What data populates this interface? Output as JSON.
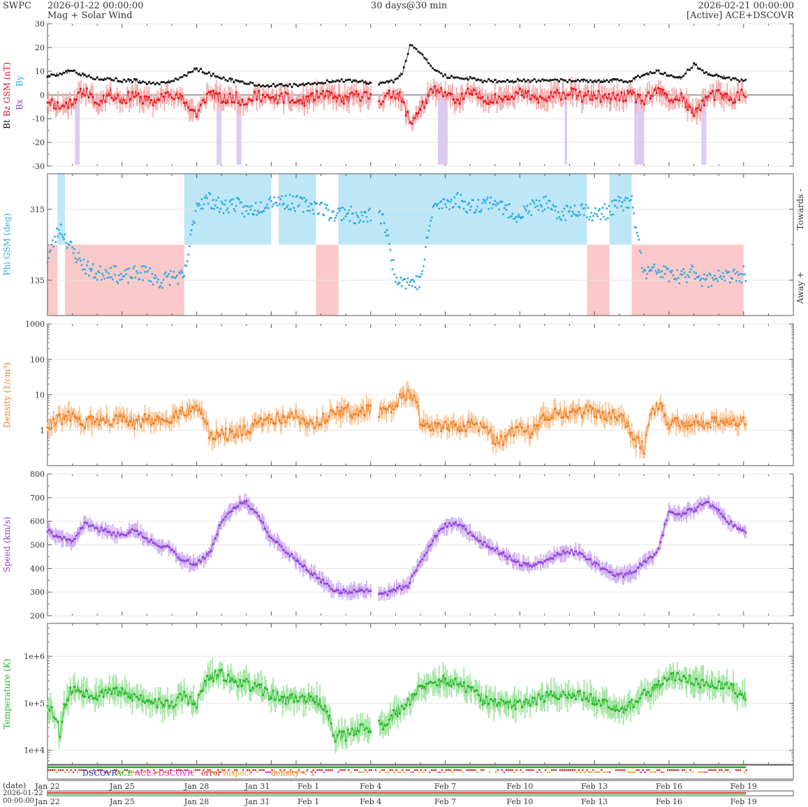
{
  "header": {
    "org": "SWPC",
    "start_time": "2026-01-22 00:00:00",
    "subtitle": "Mag + Solar Wind",
    "span": "30 days@30 min",
    "end_time": "2026-02-21 00:00:00",
    "source": "[Active] ACE+DSCOVR"
  },
  "colors": {
    "bt": "#111111",
    "bz": "#e8141b",
    "phi": "#2aa9e0",
    "density": "#f07c1c",
    "speed": "#8e3fd6",
    "temperature": "#1fb71f",
    "towards_fill": "#bde7f7",
    "away_fill": "#fbc9c9",
    "bz_fill": "#f4b3b3",
    "bz_neg_bar": "#d9c6ee",
    "density_fill": "#f9c89d",
    "speed_fill": "#d2b3f2",
    "temperature_fill": "#a9e6a9",
    "dscovr": "#1a1acc",
    "ace": "#22aa22",
    "ace_dscovr": "#e91ecf",
    "error": "#cc2222",
    "suspect": "#f0a020",
    "density_low": "#f07c1c"
  },
  "x_axis": {
    "tick_labels": [
      "Jan 22",
      "Jan 25",
      "Jan 28",
      "Jan 31",
      "Feb 1",
      "Feb 4",
      "Feb 7",
      "Feb 10",
      "Feb 13",
      "Feb 16",
      "Feb 19"
    ],
    "date_label": "(date)",
    "bottom_date": "2026-01-22",
    "bottom_time": "00:00:00"
  },
  "legend": {
    "dscovr": "DSCOVR",
    "ace": "ACE",
    "ace_dscovr": "ACE+DSCOVR",
    "error": "error",
    "suspect": "suspect",
    "density_low": "density < 1"
  },
  "chart_data": [
    {
      "type": "line",
      "panel": "magnetic field",
      "ylabel_parts": [
        "Bt",
        "Bz GSM (nT)",
        "Bx",
        "By"
      ],
      "ylim": [
        -30,
        30
      ],
      "ytick_labels": [
        "30",
        "20",
        "10",
        "0",
        "-10",
        "-20",
        "-30"
      ],
      "x_unit": "days since 2026-01-22 00:00",
      "series": [
        {
          "name": "Bt",
          "x": [
            0,
            0.5,
            1,
            1.5,
            2,
            2.5,
            3,
            3.5,
            4,
            4.5,
            5,
            5.5,
            6,
            6.5,
            7,
            7.5,
            8,
            8.5,
            9,
            9.5,
            10,
            10.5,
            11,
            11.5,
            12,
            12.5,
            13,
            13.5,
            14,
            14.3,
            14.6,
            15,
            15.5,
            16,
            16.5,
            17,
            17.5,
            18,
            18.5,
            19,
            19.5,
            20,
            20.5,
            21,
            21.5,
            22,
            22.5,
            23,
            23.5,
            24,
            24.5,
            25,
            25.5,
            26,
            26.5,
            27,
            27.5,
            28,
            28.5,
            29
          ],
          "y": [
            8,
            9,
            10,
            8,
            7,
            7,
            6,
            6,
            5,
            5,
            6,
            8,
            11,
            9,
            7,
            6,
            5,
            4,
            4,
            4,
            4,
            5,
            5,
            6,
            6,
            6,
            5,
            5,
            6,
            10,
            21,
            18,
            11,
            8,
            7,
            7,
            6,
            6,
            6,
            6,
            6,
            6,
            6,
            6,
            6,
            6,
            6,
            6,
            6,
            9,
            10,
            8,
            7,
            13,
            9,
            8,
            7,
            6,
            6,
            5
          ]
        },
        {
          "name": "Bz GSM",
          "x": [
            0,
            0.5,
            1,
            1.5,
            2,
            2.5,
            3,
            3.5,
            4,
            4.5,
            5,
            5.5,
            6,
            6.5,
            7,
            7.5,
            8,
            8.5,
            9,
            9.5,
            10,
            10.5,
            11,
            11.5,
            12,
            12.5,
            13,
            13.5,
            14,
            14.3,
            14.6,
            15,
            15.5,
            16,
            16.5,
            17,
            17.5,
            18,
            18.5,
            19,
            19.5,
            20,
            20.5,
            21,
            21.5,
            22,
            22.5,
            23,
            23.5,
            24,
            24.5,
            25,
            25.5,
            26,
            26.5,
            27,
            27.5,
            28,
            28.5,
            29
          ],
          "y": [
            -2,
            -5,
            -3,
            2,
            -4,
            1,
            -2,
            0,
            -3,
            -2,
            1,
            -3,
            -8,
            1,
            -2,
            -1,
            -3,
            0,
            -2,
            -1,
            -3,
            -2,
            0,
            -1,
            -2,
            0,
            -1,
            -2,
            1,
            -3,
            -12,
            -6,
            2,
            0,
            -2,
            1,
            -1,
            -2,
            0,
            1,
            -1,
            -2,
            0,
            1,
            -1,
            0,
            -2,
            -1,
            0,
            -3,
            2,
            -2,
            -1,
            -8,
            -1,
            0,
            -2,
            1,
            -1,
            0
          ]
        }
      ]
    },
    {
      "type": "scatter",
      "panel": "phi",
      "ylabel": "Phi GSM (deg)",
      "ylim": [
        45,
        405
      ],
      "ytick_labels": [
        "315",
        "135"
      ],
      "side_labels": [
        "Towards -",
        "Away +"
      ],
      "x_unit": "days since 2026-01-22 00:00",
      "series": [
        {
          "name": "Phi GSM",
          "x": [
            0,
            0.5,
            1,
            1.5,
            2,
            2.5,
            3,
            3.5,
            4,
            4.5,
            5,
            5.5,
            6,
            6.5,
            7,
            7.5,
            8,
            8.5,
            9,
            9.5,
            10,
            10.5,
            11,
            11.5,
            12,
            12.5,
            13,
            13.5,
            14,
            14.5,
            15,
            15.5,
            16,
            16.5,
            17,
            17.5,
            18,
            18.5,
            19,
            19.5,
            20,
            20.5,
            21,
            21.5,
            22,
            22.5,
            23,
            23.5,
            24,
            24.5,
            25,
            25.5,
            26,
            26.5,
            27,
            27.5,
            28,
            28.5,
            29
          ],
          "y": [
            190,
            270,
            210,
            170,
            150,
            160,
            140,
            150,
            155,
            130,
            145,
            140,
            330,
            340,
            320,
            330,
            310,
            320,
            340,
            335,
            330,
            325,
            320,
            300,
            310,
            290,
            300,
            295,
            145,
            130,
            130,
            320,
            330,
            340,
            320,
            330,
            335,
            310,
            300,
            320,
            330,
            300,
            310,
            320,
            300,
            310,
            330,
            330,
            150,
            160,
            150,
            140,
            160,
            130,
            150,
            140,
            150,
            160,
            150
          ]
        }
      ],
      "sector_spans": [
        {
          "sector": "Away +",
          "from": 0,
          "to": 0.4
        },
        {
          "sector": "Towards -",
          "from": 0.4,
          "to": 0.7
        },
        {
          "sector": "Away +",
          "from": 0.7,
          "to": 5.5
        },
        {
          "sector": "Towards -",
          "from": 5.5,
          "to": 9.0
        },
        {
          "sector": "Towards -",
          "from": 9.3,
          "to": 10.8
        },
        {
          "sector": "Away +",
          "from": 10.8,
          "to": 11.7
        },
        {
          "sector": "Towards -",
          "from": 11.7,
          "to": 21.7
        },
        {
          "sector": "Away +",
          "from": 21.7,
          "to": 22.6
        },
        {
          "sector": "Towards -",
          "from": 22.6,
          "to": 23.5
        },
        {
          "sector": "Away +",
          "from": 23.5,
          "to": 28.0
        }
      ]
    },
    {
      "type": "line",
      "panel": "density",
      "ylabel": "Density (1/cm³)",
      "scale": "log",
      "ylim": [
        0.1,
        1000
      ],
      "ytick_labels": [
        "1000",
        "100",
        "10",
        "1"
      ],
      "x_unit": "days since 2026-01-22 00:00",
      "series": [
        {
          "name": "Density",
          "x": [
            0,
            0.5,
            1,
            1.5,
            2,
            2.5,
            3,
            3.5,
            4,
            4.5,
            5,
            5.5,
            6,
            6.5,
            7,
            7.5,
            8,
            8.5,
            9,
            9.5,
            10,
            10.5,
            11,
            11.5,
            12,
            12.5,
            13,
            13.5,
            14,
            14.5,
            15,
            15.5,
            16,
            16.5,
            17,
            17.5,
            18,
            18.5,
            19,
            19.5,
            20,
            20.5,
            21,
            21.5,
            22,
            22.5,
            23,
            23.5,
            24,
            24.5,
            25,
            25.5,
            26,
            26.5,
            27,
            27.5,
            28,
            28.5,
            29
          ],
          "y": [
            1.5,
            2,
            2.5,
            1.5,
            2,
            1.8,
            2.2,
            1.5,
            2,
            1.6,
            2.5,
            3.5,
            4.5,
            0.8,
            0.7,
            0.8,
            0.9,
            1.5,
            2,
            2.2,
            2.5,
            1.5,
            1.8,
            3,
            3.5,
            3,
            4,
            3,
            4.5,
            12,
            2,
            1.2,
            1.2,
            1.3,
            1.5,
            1.2,
            0.5,
            0.6,
            1.2,
            0.8,
            2.5,
            3,
            3,
            3.2,
            3.5,
            2.8,
            3,
            0.6,
            0.3,
            5,
            1.5,
            1.5,
            1.8,
            1.6,
            1.7,
            2,
            1.8,
            2,
            2.2
          ]
        }
      ]
    },
    {
      "type": "line",
      "panel": "speed",
      "ylabel": "Speed (km/s)",
      "ylim": [
        200,
        800
      ],
      "ytick_labels": [
        "800",
        "700",
        "600",
        "500",
        "400",
        "300",
        "200"
      ],
      "x_unit": "days since 2026-01-22 00:00",
      "series": [
        {
          "name": "Speed",
          "x": [
            0,
            0.5,
            1,
            1.5,
            2,
            2.5,
            3,
            3.5,
            4,
            4.5,
            5,
            5.5,
            6,
            6.5,
            7,
            7.5,
            8,
            8.5,
            9,
            9.5,
            10,
            10.5,
            11,
            11.5,
            12,
            12.5,
            13,
            13.5,
            14,
            14.5,
            15,
            15.5,
            16,
            16.5,
            17,
            17.5,
            18,
            18.5,
            19,
            19.5,
            20,
            20.5,
            21,
            21.5,
            22,
            22.5,
            23,
            23.5,
            24,
            24.5,
            25,
            25.5,
            26,
            26.5,
            27,
            27.5,
            28,
            28.5,
            29
          ],
          "y": [
            560,
            530,
            510,
            590,
            570,
            550,
            540,
            570,
            520,
            500,
            480,
            430,
            420,
            460,
            600,
            660,
            680,
            620,
            530,
            480,
            440,
            390,
            350,
            310,
            300,
            310,
            300,
            290,
            310,
            330,
            430,
            520,
            580,
            590,
            550,
            510,
            480,
            450,
            420,
            410,
            430,
            460,
            470,
            460,
            420,
            390,
            370,
            380,
            430,
            460,
            640,
            630,
            650,
            680,
            640,
            590,
            560,
            540,
            500
          ]
        }
      ]
    },
    {
      "type": "line",
      "panel": "temperature",
      "ylabel": "Temperature (K)",
      "scale": "log",
      "ylim": [
        5000,
        5000000
      ],
      "ytick_labels": [
        "1e+6",
        "1e+5",
        "1e+4"
      ],
      "x_unit": "days since 2026-01-22 00:00",
      "series": [
        {
          "name": "Temperature",
          "x": [
            0,
            0.5,
            1,
            1.5,
            2,
            2.5,
            3,
            3.5,
            4,
            4.5,
            5,
            5.5,
            6,
            6.5,
            7,
            7.5,
            8,
            8.5,
            9,
            9.5,
            10,
            10.5,
            11,
            11.5,
            12,
            12.5,
            13,
            13.5,
            14,
            14.5,
            15,
            15.5,
            16,
            16.5,
            17,
            17.5,
            18,
            18.5,
            19,
            19.5,
            20,
            20.5,
            21,
            21.5,
            22,
            22.5,
            23,
            23.5,
            24,
            24.5,
            25,
            25.5,
            26,
            26.5,
            27,
            27.5,
            28,
            28.5,
            29
          ],
          "y": [
            100000,
            20000,
            200000,
            180000,
            150000,
            200000,
            160000,
            140000,
            120000,
            100000,
            90000,
            150000,
            80000,
            350000,
            400000,
            300000,
            250000,
            200000,
            150000,
            120000,
            130000,
            120000,
            100000,
            20000,
            20000,
            30000,
            30000,
            35000,
            60000,
            100000,
            200000,
            250000,
            300000,
            250000,
            200000,
            120000,
            100000,
            90000,
            100000,
            120000,
            130000,
            150000,
            160000,
            140000,
            120000,
            100000,
            80000,
            90000,
            150000,
            200000,
            400000,
            350000,
            300000,
            250000,
            250000,
            200000,
            150000,
            130000,
            120000
          ]
        }
      ]
    }
  ]
}
